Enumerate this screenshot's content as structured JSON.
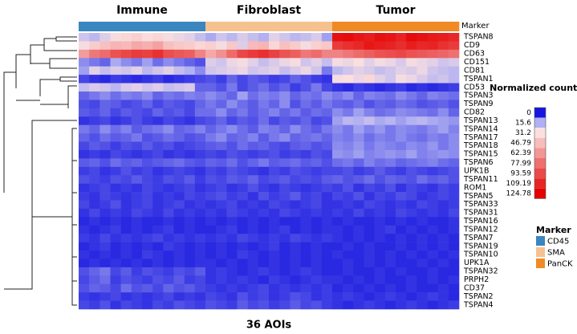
{
  "chart_data": {
    "type": "heatmap",
    "x_label": "36 AOIs",
    "groups": [
      "Immune",
      "Fibroblast",
      "Tumor"
    ],
    "annotation": {
      "title": "Marker",
      "legend": [
        {
          "name": "CD45",
          "color": "#3a86bf"
        },
        {
          "name": "SMA",
          "color": "#f5c28f"
        },
        {
          "name": "PanCK",
          "color": "#ef8a25"
        }
      ],
      "values": [
        "CD45",
        "CD45",
        "CD45",
        "CD45",
        "CD45",
        "CD45",
        "CD45",
        "CD45",
        "CD45",
        "CD45",
        "CD45",
        "CD45",
        "SMA",
        "SMA",
        "SMA",
        "SMA",
        "SMA",
        "SMA",
        "SMA",
        "SMA",
        "SMA",
        "SMA",
        "SMA",
        "SMA",
        "PanCK",
        "PanCK",
        "PanCK",
        "PanCK",
        "PanCK",
        "PanCK",
        "PanCK",
        "PanCK",
        "PanCK",
        "PanCK",
        "PanCK",
        "PanCK"
      ]
    },
    "colorbar_title": "Normalized counts",
    "zlim": [
      0,
      124.78
    ],
    "zticks": [
      0,
      15.6,
      31.2,
      46.79,
      62.39,
      77.99,
      93.59,
      109.19,
      124.78
    ],
    "colors": [
      "#1515e0",
      "#b0b0f2",
      "#fbe0e0",
      "#f7bcbc",
      "#f29696",
      "#ee7070",
      "#ea4a4a",
      "#e82525",
      "#e60000"
    ],
    "rows": [
      "TSPAN8",
      "CD9",
      "CD63",
      "CD151",
      "CD81",
      "TSPAN1",
      "CD53",
      "TSPAN3",
      "TSPAN9",
      "CD82",
      "TSPAN13",
      "TSPAN14",
      "TSPAN17",
      "TSPAN18",
      "TSPAN15",
      "TSPAN6",
      "UPK1B",
      "TSPAN11",
      "ROM1",
      "TSPAN5",
      "TSPAN33",
      "TSPAN31",
      "TSPAN16",
      "TSPAN12",
      "TSPAN7",
      "TSPAN19",
      "TSPAN10",
      "UPK1A",
      "TSPAN32",
      "PRPH2",
      "CD37",
      "TSPAN2",
      "TSPAN4"
    ],
    "values": [
      [
        22,
        18,
        25,
        30,
        35,
        38,
        33,
        36,
        30,
        28,
        26,
        20,
        15,
        22,
        18,
        24,
        20,
        16,
        26,
        22,
        18,
        20,
        24,
        14,
        118,
        120,
        115,
        112,
        118,
        116,
        110,
        120,
        117,
        114,
        112,
        108
      ],
      [
        30,
        40,
        45,
        50,
        48,
        55,
        52,
        58,
        45,
        42,
        40,
        35,
        38,
        30,
        42,
        25,
        48,
        50,
        35,
        45,
        40,
        30,
        38,
        42,
        100,
        105,
        108,
        115,
        112,
        110,
        106,
        112,
        108,
        110,
        104,
        100
      ],
      [
        60,
        75,
        80,
        90,
        95,
        100,
        98,
        105,
        92,
        88,
        85,
        70,
        55,
        65,
        80,
        95,
        100,
        105,
        98,
        90,
        85,
        75,
        80,
        70,
        70,
        75,
        80,
        85,
        90,
        92,
        95,
        90,
        88,
        85,
        82,
        78
      ],
      [
        12,
        10,
        8,
        15,
        12,
        10,
        14,
        9,
        12,
        10,
        8,
        6,
        25,
        22,
        28,
        30,
        26,
        20,
        24,
        28,
        30,
        22,
        26,
        20,
        30,
        28,
        32,
        26,
        30,
        28,
        24,
        30,
        28,
        26,
        22,
        24
      ],
      [
        14,
        26,
        20,
        24,
        22,
        26,
        18,
        22,
        26,
        20,
        16,
        12,
        22,
        24,
        26,
        28,
        22,
        24,
        26,
        20,
        24,
        28,
        22,
        10,
        18,
        22,
        26,
        24,
        20,
        22,
        26,
        24,
        28,
        22,
        20,
        18
      ],
      [
        5,
        3,
        2,
        4,
        3,
        2,
        3,
        4,
        2,
        3,
        4,
        5,
        6,
        4,
        8,
        5,
        7,
        6,
        4,
        5,
        8,
        6,
        4,
        3,
        30,
        32,
        28,
        35,
        26,
        22,
        30,
        28,
        24,
        20,
        22,
        18
      ],
      [
        20,
        24,
        22,
        18,
        24,
        26,
        22,
        25,
        20,
        22,
        24,
        8,
        8,
        6,
        10,
        5,
        7,
        9,
        6,
        8,
        4,
        6,
        10,
        5,
        3,
        2,
        4,
        3,
        2,
        3,
        4,
        2,
        3,
        2,
        3,
        4
      ],
      [
        8,
        10,
        12,
        9,
        11,
        10,
        12,
        8,
        10,
        9,
        11,
        10,
        12,
        10,
        8,
        14,
        9,
        11,
        10,
        12,
        8,
        10,
        9,
        12,
        10,
        12,
        8,
        11,
        10,
        9,
        12,
        10,
        8,
        11,
        10,
        9
      ],
      [
        6,
        5,
        8,
        7,
        5,
        6,
        8,
        5,
        7,
        6,
        5,
        8,
        10,
        8,
        12,
        9,
        7,
        10,
        8,
        12,
        6,
        9,
        7,
        10,
        8,
        7,
        9,
        6,
        8,
        7,
        9,
        8,
        6,
        7,
        8,
        6
      ],
      [
        7,
        6,
        8,
        5,
        7,
        6,
        5,
        8,
        6,
        7,
        5,
        9,
        9,
        12,
        8,
        10,
        7,
        9,
        11,
        8,
        10,
        7,
        9,
        8,
        12,
        10,
        14,
        11,
        9,
        10,
        12,
        11,
        10,
        9,
        12,
        8
      ],
      [
        3,
        4,
        5,
        3,
        4,
        6,
        4,
        3,
        5,
        4,
        3,
        5,
        6,
        8,
        5,
        7,
        6,
        9,
        5,
        7,
        6,
        8,
        5,
        6,
        14,
        18,
        16,
        20,
        15,
        17,
        14,
        16,
        18,
        15,
        14,
        13
      ],
      [
        10,
        8,
        12,
        9,
        11,
        7,
        9,
        10,
        12,
        8,
        9,
        11,
        8,
        10,
        12,
        9,
        7,
        11,
        10,
        8,
        12,
        9,
        7,
        10,
        12,
        10,
        14,
        11,
        13,
        10,
        12,
        11,
        10,
        12,
        14,
        11
      ],
      [
        8,
        6,
        9,
        7,
        8,
        10,
        6,
        7,
        9,
        8,
        6,
        7,
        10,
        12,
        8,
        9,
        11,
        7,
        10,
        12,
        8,
        9,
        10,
        8,
        11,
        10,
        12,
        9,
        11,
        10,
        12,
        10,
        9,
        11,
        10,
        12
      ],
      [
        5,
        7,
        6,
        4,
        6,
        5,
        7,
        5,
        6,
        4,
        5,
        6,
        7,
        8,
        6,
        9,
        7,
        8,
        6,
        5,
        7,
        8,
        6,
        7,
        12,
        11,
        13,
        10,
        12,
        11,
        10,
        12,
        11,
        13,
        10,
        12
      ],
      [
        3,
        4,
        3,
        5,
        4,
        3,
        4,
        5,
        3,
        4,
        3,
        4,
        5,
        4,
        6,
        5,
        4,
        5,
        6,
        4,
        5,
        4,
        6,
        5,
        13,
        12,
        14,
        11,
        12,
        13,
        12,
        14,
        11,
        12,
        13,
        12
      ],
      [
        7,
        8,
        6,
        9,
        7,
        8,
        6,
        7,
        8,
        9,
        7,
        6,
        8,
        7,
        9,
        6,
        8,
        10,
        7,
        8,
        9,
        7,
        8,
        6,
        9,
        10,
        8,
        11,
        9,
        10,
        8,
        9,
        10,
        11,
        9,
        8
      ],
      [
        4,
        5,
        3,
        4,
        6,
        4,
        5,
        3,
        4,
        5,
        4,
        3,
        5,
        4,
        6,
        5,
        4,
        3,
        5,
        4,
        6,
        5,
        4,
        5,
        5,
        6,
        4,
        5,
        7,
        5,
        4,
        6,
        5,
        4,
        5,
        6
      ],
      [
        6,
        5,
        4,
        6,
        5,
        7,
        5,
        4,
        6,
        5,
        7,
        4,
        6,
        5,
        7,
        6,
        8,
        5,
        6,
        7,
        5,
        6,
        5,
        7,
        8,
        6,
        7,
        9,
        6,
        8,
        7,
        6,
        9,
        7,
        8,
        6
      ],
      [
        3,
        4,
        5,
        3,
        4,
        3,
        5,
        4,
        3,
        4,
        5,
        3,
        4,
        5,
        3,
        4,
        6,
        4,
        3,
        5,
        4,
        3,
        4,
        5,
        4,
        6,
        3,
        5,
        4,
        6,
        3,
        5,
        4,
        3,
        5,
        4
      ],
      [
        4,
        3,
        5,
        4,
        3,
        4,
        5,
        3,
        4,
        3,
        5,
        4,
        5,
        6,
        4,
        5,
        3,
        6,
        4,
        5,
        7,
        4,
        5,
        3,
        5,
        4,
        6,
        3,
        5,
        4,
        6,
        5,
        3,
        4,
        5,
        4
      ],
      [
        5,
        3,
        4,
        6,
        3,
        4,
        5,
        3,
        4,
        5,
        3,
        4,
        3,
        4,
        5,
        3,
        4,
        3,
        5,
        4,
        3,
        4,
        5,
        3,
        3,
        4,
        3,
        5,
        4,
        3,
        4,
        3,
        5,
        4,
        3,
        4
      ],
      [
        3,
        5,
        3,
        4,
        3,
        5,
        4,
        3,
        5,
        3,
        4,
        3,
        4,
        3,
        5,
        4,
        3,
        4,
        3,
        5,
        4,
        3,
        4,
        3,
        4,
        3,
        5,
        3,
        4,
        3,
        5,
        4,
        3,
        4,
        3,
        5
      ],
      [
        2,
        3,
        2,
        3,
        2,
        3,
        2,
        2,
        3,
        2,
        3,
        2,
        3,
        2,
        3,
        2,
        3,
        2,
        3,
        2,
        2,
        3,
        2,
        3,
        2,
        3,
        2,
        2,
        3,
        2,
        3,
        2,
        3,
        2,
        2,
        3
      ],
      [
        3,
        2,
        3,
        4,
        2,
        3,
        2,
        3,
        4,
        2,
        3,
        2,
        2,
        3,
        4,
        2,
        3,
        2,
        3,
        4,
        2,
        3,
        2,
        3,
        3,
        2,
        3,
        2,
        3,
        4,
        2,
        3,
        2,
        3,
        2,
        3
      ],
      [
        4,
        3,
        5,
        3,
        4,
        3,
        4,
        5,
        3,
        4,
        3,
        4,
        3,
        4,
        3,
        5,
        4,
        3,
        4,
        3,
        5,
        4,
        3,
        4,
        3,
        2,
        3,
        2,
        3,
        2,
        3,
        2,
        3,
        2,
        3,
        2
      ],
      [
        2,
        3,
        4,
        2,
        3,
        2,
        3,
        2,
        4,
        3,
        2,
        3,
        2,
        3,
        2,
        3,
        2,
        3,
        4,
        2,
        3,
        2,
        3,
        2,
        2,
        3,
        2,
        3,
        2,
        2,
        3,
        2,
        3,
        2,
        3,
        2
      ],
      [
        3,
        2,
        3,
        2,
        3,
        2,
        4,
        3,
        2,
        3,
        2,
        3,
        2,
        3,
        2,
        4,
        3,
        2,
        3,
        2,
        3,
        2,
        3,
        2,
        3,
        2,
        2,
        3,
        2,
        3,
        2,
        3,
        2,
        3,
        2,
        3
      ],
      [
        2,
        3,
        2,
        3,
        2,
        3,
        2,
        3,
        2,
        3,
        2,
        3,
        3,
        2,
        3,
        2,
        3,
        2,
        3,
        2,
        3,
        2,
        3,
        2,
        2,
        3,
        2,
        3,
        2,
        3,
        2,
        2,
        3,
        2,
        3,
        2
      ],
      [
        6,
        8,
        10,
        5,
        7,
        4,
        6,
        5,
        4,
        6,
        5,
        7,
        3,
        4,
        3,
        2,
        3,
        4,
        3,
        2,
        3,
        4,
        3,
        2,
        2,
        3,
        2,
        2,
        3,
        2,
        3,
        2,
        2,
        3,
        2,
        2
      ],
      [
        5,
        7,
        9,
        4,
        6,
        5,
        4,
        6,
        5,
        7,
        4,
        5,
        3,
        4,
        3,
        4,
        3,
        2,
        4,
        3,
        2,
        3,
        4,
        3,
        3,
        2,
        3,
        2,
        3,
        2,
        2,
        3,
        2,
        3,
        2,
        3
      ],
      [
        6,
        8,
        7,
        5,
        9,
        6,
        7,
        5,
        8,
        6,
        7,
        5,
        4,
        3,
        4,
        3,
        4,
        5,
        3,
        4,
        3,
        4,
        3,
        4,
        2,
        3,
        2,
        3,
        2,
        3,
        2,
        3,
        2,
        2,
        3,
        2
      ],
      [
        4,
        3,
        4,
        5,
        3,
        4,
        3,
        4,
        5,
        3,
        4,
        3,
        5,
        4,
        3,
        6,
        4,
        5,
        3,
        4,
        6,
        5,
        3,
        4,
        3,
        4,
        3,
        2,
        3,
        4,
        3,
        2,
        3,
        4,
        3,
        2
      ],
      [
        5,
        4,
        6,
        3,
        5,
        4,
        3,
        5,
        4,
        6,
        5,
        4,
        6,
        5,
        4,
        7,
        5,
        6,
        4,
        5,
        7,
        5,
        6,
        4,
        3,
        2,
        3,
        4,
        3,
        2,
        3,
        4,
        3,
        2,
        3,
        4
      ]
    ]
  }
}
